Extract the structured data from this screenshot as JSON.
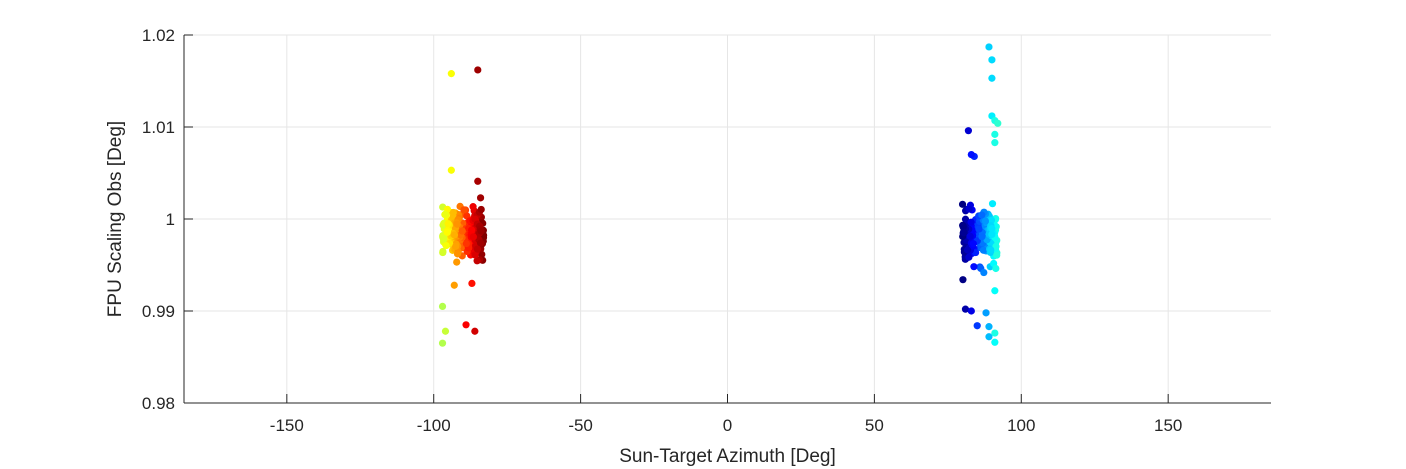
{
  "chart_data": {
    "type": "scatter",
    "title": "",
    "xlabel": "Sun-Target Azimuth [Deg]",
    "ylabel": "FPU Scaling Obs [Deg]",
    "xlim": [
      -185,
      185
    ],
    "ylim": [
      0.98,
      1.02
    ],
    "xticks": [
      -150,
      -100,
      -50,
      0,
      50,
      100,
      150
    ],
    "xtick_labels": [
      "-150",
      "-100",
      "-50",
      "0",
      "50",
      "100",
      "150"
    ],
    "yticks": [
      0.98,
      0.99,
      1.0,
      1.01,
      1.02
    ],
    "ytick_labels": [
      "0.98",
      "0.99",
      "1",
      "1.01",
      "1.02"
    ],
    "grid": true,
    "colormap": "jet",
    "clusters": [
      {
        "x_range": [
          -97,
          -83
        ],
        "y_center": 0.9985,
        "y_spread": 0.0022,
        "count": 220,
        "color_range": [
          0.58,
          1.0
        ]
      },
      {
        "x_range": [
          80,
          92
        ],
        "y_center": 0.998,
        "y_spread": 0.0022,
        "count": 200,
        "color_range": [
          0.0,
          0.42
        ]
      }
    ],
    "outliers": [
      {
        "x": -94,
        "y": 1.0158,
        "c": 0.62
      },
      {
        "x": -85,
        "y": 1.0162,
        "c": 0.97
      },
      {
        "x": -97,
        "y": 0.9905,
        "c": 0.55
      },
      {
        "x": -96,
        "y": 0.9878,
        "c": 0.57
      },
      {
        "x": -97,
        "y": 0.9865,
        "c": 0.55
      },
      {
        "x": -89,
        "y": 0.9885,
        "c": 0.88
      },
      {
        "x": -86,
        "y": 0.9878,
        "c": 0.92
      },
      {
        "x": -93,
        "y": 0.9928,
        "c": 0.72
      },
      {
        "x": -87,
        "y": 0.993,
        "c": 0.86
      },
      {
        "x": -94,
        "y": 1.0053,
        "c": 0.62
      },
      {
        "x": -85,
        "y": 1.0041,
        "c": 0.96
      },
      {
        "x": 89,
        "y": 1.0187,
        "c": 0.33
      },
      {
        "x": 90,
        "y": 1.0173,
        "c": 0.34
      },
      {
        "x": 90,
        "y": 1.0153,
        "c": 0.34
      },
      {
        "x": 90,
        "y": 1.0112,
        "c": 0.36
      },
      {
        "x": 91,
        "y": 1.0107,
        "c": 0.4
      },
      {
        "x": 92,
        "y": 1.0104,
        "c": 0.42
      },
      {
        "x": 91,
        "y": 1.0092,
        "c": 0.4
      },
      {
        "x": 91,
        "y": 1.0083,
        "c": 0.4
      },
      {
        "x": 82,
        "y": 1.0096,
        "c": 0.08
      },
      {
        "x": 84,
        "y": 1.0068,
        "c": 0.16
      },
      {
        "x": 83,
        "y": 1.007,
        "c": 0.14
      },
      {
        "x": 81,
        "y": 0.9902,
        "c": 0.04
      },
      {
        "x": 83,
        "y": 0.99,
        "c": 0.1
      },
      {
        "x": 85,
        "y": 0.9884,
        "c": 0.18
      },
      {
        "x": 88,
        "y": 0.9898,
        "c": 0.28
      },
      {
        "x": 89,
        "y": 0.9872,
        "c": 0.31
      },
      {
        "x": 91,
        "y": 0.9866,
        "c": 0.38
      },
      {
        "x": 91,
        "y": 0.9876,
        "c": 0.4
      },
      {
        "x": 89,
        "y": 0.9883,
        "c": 0.3
      },
      {
        "x": 91,
        "y": 0.9922,
        "c": 0.38
      }
    ]
  }
}
